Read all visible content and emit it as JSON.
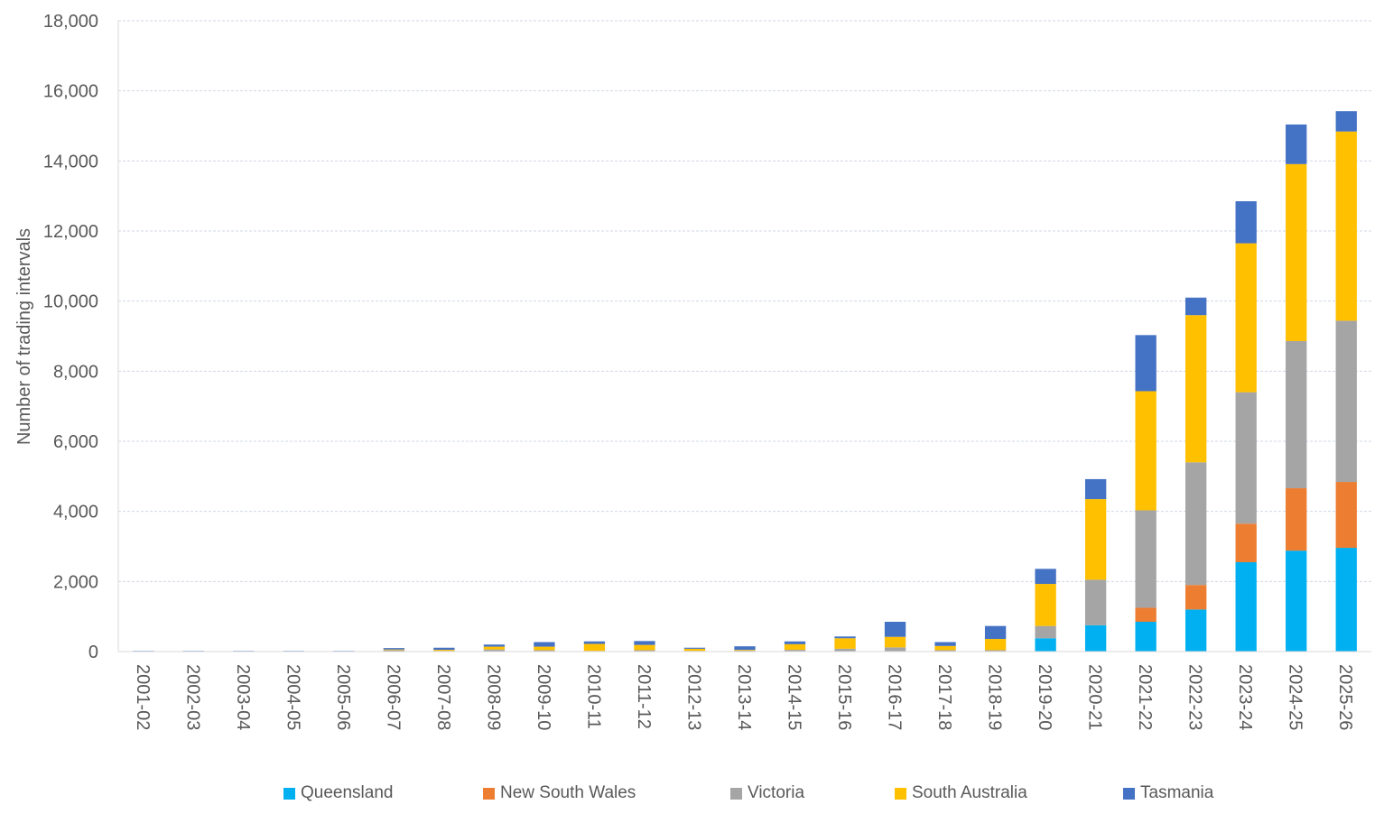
{
  "chart_data": {
    "type": "bar",
    "stacked": true,
    "title": "",
    "xlabel": "",
    "ylabel": "Number of trading intervals",
    "ylim": [
      0,
      18000
    ],
    "yticks": [
      0,
      2000,
      4000,
      6000,
      8000,
      10000,
      12000,
      14000,
      16000,
      18000
    ],
    "ytick_labels": [
      "0",
      "2,000",
      "4,000",
      "6,000",
      "8,000",
      "10,000",
      "12,000",
      "14,000",
      "16,000",
      "18,000"
    ],
    "grid": "horizontal",
    "legend_position": "bottom",
    "categories": [
      "2001-02",
      "2002-03",
      "2003-04",
      "2004-05",
      "2005-06",
      "2006-07",
      "2007-08",
      "2008-09",
      "2009-10",
      "2010-11",
      "2011-12",
      "2012-13",
      "2013-14",
      "2014-15",
      "2015-16",
      "2016-17",
      "2017-18",
      "2018-19",
      "2019-20",
      "2020-21",
      "2021-22",
      "2022-23",
      "2023-24",
      "2024-25",
      "2025-26"
    ],
    "series": [
      {
        "name": "Queensland",
        "color": "#00B0F0",
        "values": [
          0,
          0,
          0,
          0,
          0,
          0,
          0,
          0,
          0,
          0,
          0,
          0,
          0,
          0,
          0,
          0,
          0,
          0,
          380,
          750,
          850,
          1200,
          2550,
          2880,
          2960
        ]
      },
      {
        "name": "New South Wales",
        "color": "#ED7D31",
        "values": [
          0,
          0,
          0,
          0,
          0,
          0,
          0,
          0,
          0,
          0,
          0,
          0,
          0,
          0,
          0,
          0,
          0,
          0,
          0,
          0,
          400,
          700,
          1100,
          1780,
          1880
        ]
      },
      {
        "name": "Victoria",
        "color": "#A5A5A5",
        "values": [
          5,
          0,
          0,
          5,
          5,
          40,
          20,
          60,
          40,
          20,
          40,
          20,
          30,
          50,
          80,
          120,
          40,
          40,
          350,
          1300,
          2780,
          3500,
          3750,
          4200,
          4600
        ]
      },
      {
        "name": "South Australia",
        "color": "#FFC000",
        "values": [
          5,
          10,
          10,
          5,
          5,
          20,
          30,
          80,
          100,
          200,
          150,
          60,
          20,
          160,
          300,
          300,
          120,
          320,
          1200,
          2300,
          3400,
          4200,
          4250,
          5050,
          5400
        ]
      },
      {
        "name": "Tasmania",
        "color": "#4472C4",
        "values": [
          10,
          10,
          10,
          10,
          10,
          40,
          60,
          60,
          130,
          70,
          110,
          30,
          100,
          80,
          50,
          430,
          110,
          370,
          430,
          570,
          1600,
          500,
          1200,
          1130,
          580
        ]
      }
    ]
  }
}
